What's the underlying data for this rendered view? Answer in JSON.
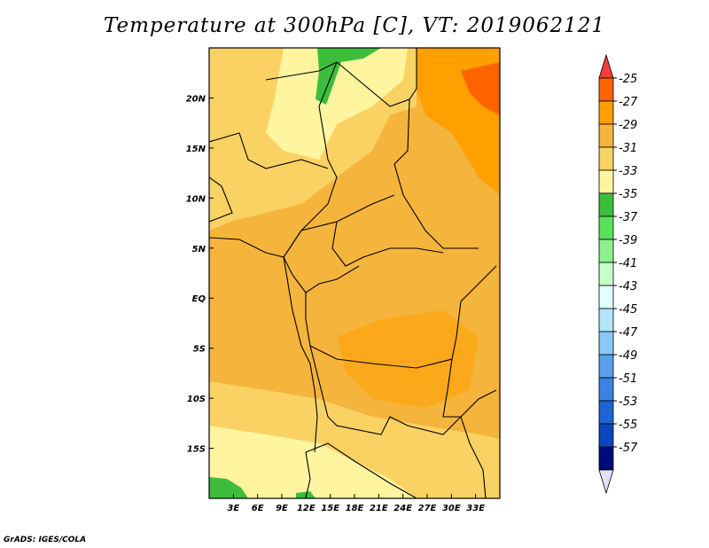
{
  "title": "Temperature at 300hPa [C], VT: 2019062121",
  "footer": "GrADS: IGES/COLA",
  "map": {
    "lon_range": [
      0,
      36
    ],
    "lat_range": [
      -20,
      25
    ],
    "lon_ticks": [
      "3E",
      "6E",
      "9E",
      "12E",
      "15E",
      "18E",
      "21E",
      "24E",
      "27E",
      "30E",
      "33E"
    ],
    "lat_ticks": [
      "20N",
      "15N",
      "10N",
      "5N",
      "EQ",
      "5S",
      "10S",
      "15S"
    ]
  },
  "colorbar": {
    "labels": [
      "-25",
      "-27",
      "-29",
      "-31",
      "-33",
      "-35",
      "-37",
      "-39",
      "-41",
      "-43",
      "-45",
      "-47",
      "-49",
      "-51",
      "-53",
      "-55",
      "-57"
    ],
    "colors": [
      "#fa3c3c",
      "#ff6400",
      "#ffa000",
      "#f5b43c",
      "#fad264",
      "#fff5a0",
      "#3cbe3c",
      "#5ae15a",
      "#8cf08c",
      "#c8ffc8",
      "#e0ffff",
      "#b4e6fa",
      "#8cc8f5",
      "#5aa0eb",
      "#3c82e1",
      "#1e64d2",
      "#0a46be",
      "#000a78",
      "#e1e1fa"
    ]
  }
}
